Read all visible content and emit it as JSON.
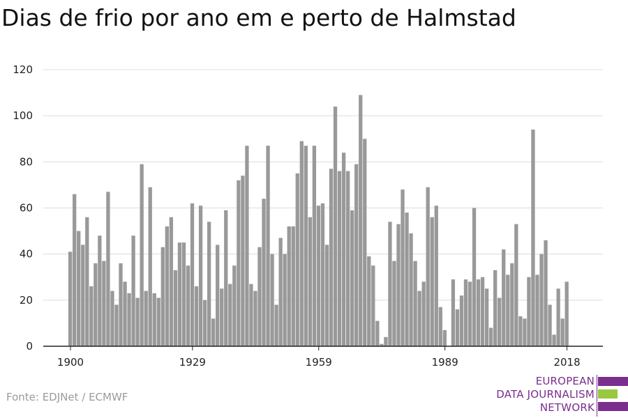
{
  "title": "Dias de frio por ano em e perto de Halmstad",
  "source": "Fonte: EDJNet / ECMWF",
  "logo": {
    "lines": [
      "EUROPEAN",
      "DATA JOURNALISM",
      "NETWORK"
    ],
    "colors": {
      "purple": "#7a2e8e",
      "green": "#96c93d"
    }
  },
  "chart_data": {
    "type": "bar",
    "title": "Dias de frio por ano em e perto de Halmstad",
    "xlabel": "",
    "ylabel": "",
    "x_start": 1900,
    "x_end": 2018,
    "xticks": [
      1900,
      1929,
      1959,
      1989,
      2018
    ],
    "yticks": [
      0,
      20,
      40,
      60,
      80,
      100,
      120
    ],
    "ylim": [
      0,
      120
    ],
    "grid": true,
    "bar_color": "#999999",
    "values": [
      41,
      66,
      50,
      44,
      56,
      26,
      36,
      48,
      37,
      67,
      24,
      18,
      36,
      28,
      23,
      48,
      21,
      79,
      24,
      69,
      23,
      21,
      43,
      52,
      56,
      33,
      45,
      45,
      35,
      62,
      26,
      61,
      20,
      54,
      12,
      44,
      25,
      59,
      27,
      35,
      72,
      74,
      87,
      27,
      24,
      43,
      64,
      87,
      40,
      18,
      47,
      40,
      52,
      52,
      75,
      89,
      87,
      56,
      87,
      61,
      62,
      44,
      77,
      104,
      76,
      84,
      76,
      59,
      79,
      109,
      90,
      39,
      35,
      11,
      1,
      4,
      54,
      37,
      53,
      68,
      58,
      49,
      37,
      24,
      28,
      69,
      56,
      61,
      17,
      7,
      0,
      29,
      16,
      22,
      29,
      28,
      60,
      29,
      30,
      25,
      8,
      33,
      21,
      42,
      31,
      36,
      53,
      13,
      12,
      30,
      94,
      31,
      40,
      46,
      18,
      5,
      25,
      12,
      28
    ]
  }
}
